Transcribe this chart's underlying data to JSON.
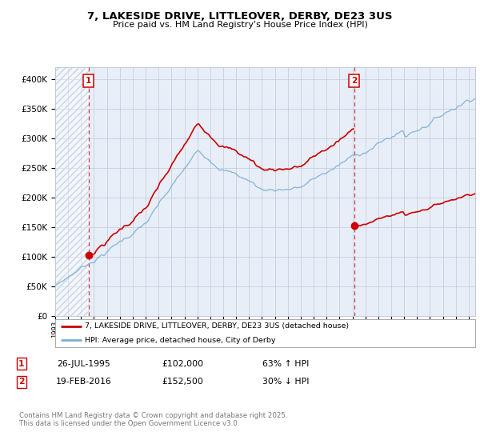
{
  "title_line1": "7, LAKESIDE DRIVE, LITTLEOVER, DERBY, DE23 3US",
  "title_line2": "Price paid vs. HM Land Registry's House Price Index (HPI)",
  "ylim": [
    0,
    420000
  ],
  "yticks": [
    0,
    50000,
    100000,
    150000,
    200000,
    250000,
    300000,
    350000,
    400000
  ],
  "ytick_labels": [
    "£0",
    "£50K",
    "£100K",
    "£150K",
    "£200K",
    "£250K",
    "£300K",
    "£350K",
    "£400K"
  ],
  "background_color": "#e8eef8",
  "hatch_color": "#b0bcd8",
  "grid_color": "#c0cadc",
  "line_color_hpi": "#7bafd4",
  "line_color_price": "#cc0000",
  "purchase1_date": 1995.57,
  "purchase1_price": 102000,
  "purchase2_date": 2016.13,
  "purchase2_price": 152500,
  "legend_label1": "7, LAKESIDE DRIVE, LITTLEOVER, DERBY, DE23 3US (detached house)",
  "legend_label2": "HPI: Average price, detached house, City of Derby",
  "table_row1": [
    "1",
    "26-JUL-1995",
    "£102,000",
    "63% ↑ HPI"
  ],
  "table_row2": [
    "2",
    "19-FEB-2016",
    "£152,500",
    "30% ↓ HPI"
  ],
  "footnote": "Contains HM Land Registry data © Crown copyright and database right 2025.\nThis data is licensed under the Open Government Licence v3.0.",
  "xmin": 1993.0,
  "xmax": 2025.5
}
